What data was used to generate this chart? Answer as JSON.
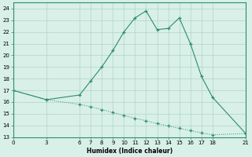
{
  "xlabel": "Humidex (Indice chaleur)",
  "upper_x": [
    0,
    3,
    6,
    7,
    8,
    9,
    10,
    11,
    12,
    13,
    14,
    15,
    16,
    17,
    18,
    21
  ],
  "upper_y": [
    17,
    16.2,
    16.6,
    17.8,
    19,
    20.4,
    22,
    23.2,
    23.8,
    22.2,
    22.3,
    23.2,
    21,
    18.2,
    16.4,
    13.3
  ],
  "lower_x": [
    0,
    3,
    6,
    7,
    8,
    9,
    10,
    11,
    12,
    13,
    14,
    15,
    16,
    17,
    18,
    21
  ],
  "lower_y": [
    17,
    16.2,
    15.8,
    15.6,
    15.35,
    15.1,
    14.85,
    14.6,
    14.4,
    14.15,
    13.95,
    13.75,
    13.55,
    13.35,
    13.2,
    13.3
  ],
  "line_color": "#2e8b72",
  "bg_color": "#d8f0e8",
  "grid_color": "#b0d4c8",
  "ylim": [
    13,
    24.5
  ],
  "yticks": [
    13,
    14,
    15,
    16,
    17,
    18,
    19,
    20,
    21,
    22,
    23,
    24
  ],
  "xticks": [
    0,
    3,
    6,
    7,
    8,
    9,
    10,
    11,
    12,
    13,
    14,
    15,
    16,
    17,
    18,
    21
  ],
  "xlim": [
    0,
    21
  ]
}
